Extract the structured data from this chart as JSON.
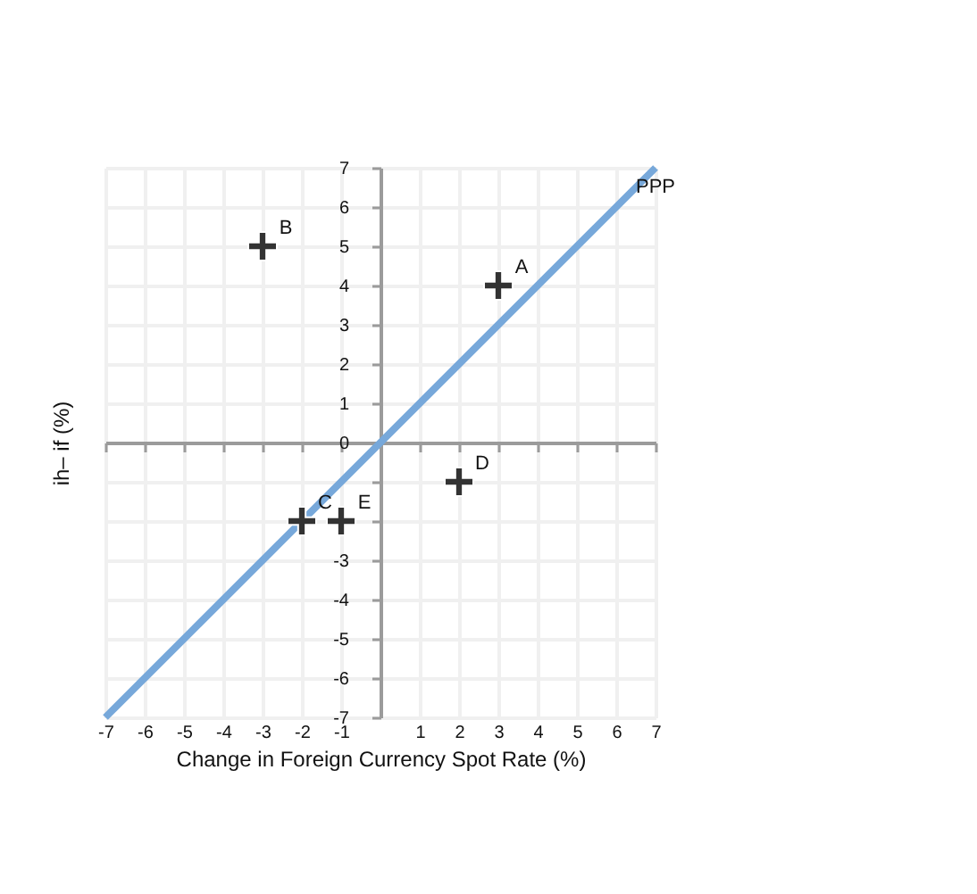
{
  "chart_data": {
    "type": "scatter",
    "xlabel": "Change in Foreign Currency Spot Rate (%)",
    "ylabel": "ih– if (%)",
    "xlim": [
      -7,
      7
    ],
    "ylim": [
      -7,
      7
    ],
    "xticks": [
      -7,
      -6,
      -5,
      -4,
      -3,
      -2,
      -1,
      {
        "value": 0,
        "label": null
      },
      1,
      2,
      3,
      4,
      5,
      6,
      7
    ],
    "yticks": [
      -7,
      -6,
      -5,
      -4,
      -3,
      {
        "value": -2,
        "label": null
      },
      {
        "value": -1,
        "label": null
      },
      0,
      1,
      2,
      3,
      4,
      5,
      6,
      7
    ],
    "grid": true,
    "marker": "cross",
    "series": [
      {
        "type": "line",
        "name": "PPP",
        "color": "#77a8da",
        "marker": "none",
        "x": [
          -7,
          7
        ],
        "values": [
          -7,
          7
        ]
      },
      {
        "name": "A",
        "color": "#333333",
        "x": [
          3
        ],
        "values": [
          4
        ]
      },
      {
        "name": "B",
        "color": "#333333",
        "x": [
          -3
        ],
        "values": [
          5
        ]
      },
      {
        "name": "C",
        "color": "#333333",
        "x": [
          -2
        ],
        "values": [
          -2
        ]
      },
      {
        "name": "D",
        "color": "#333333",
        "x": [
          2
        ],
        "values": [
          -1
        ]
      },
      {
        "name": "E",
        "color": "#333333",
        "x": [
          -1
        ],
        "values": [
          -2
        ]
      }
    ]
  }
}
